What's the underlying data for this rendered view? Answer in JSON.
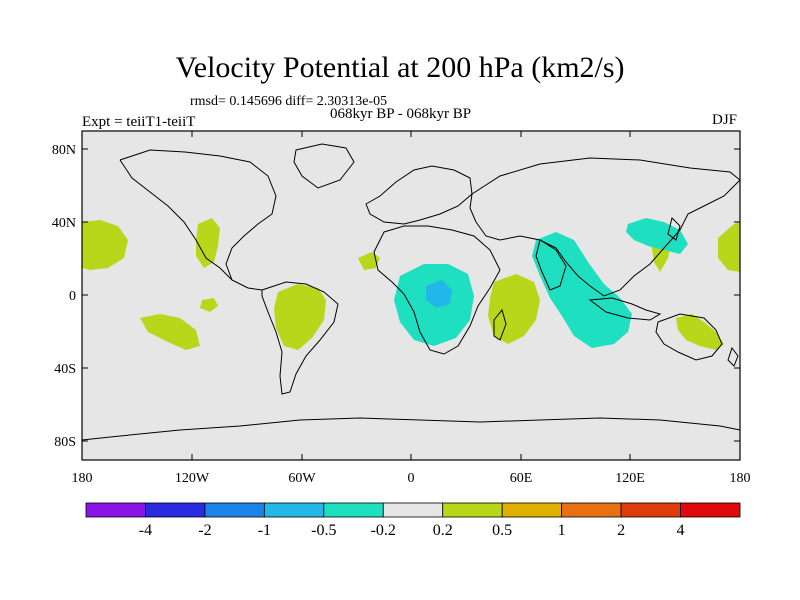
{
  "title": "Velocity Potential at 200 hPa (km2/s)",
  "stats_line": "rmsd= 0.145696 diff= 2.30313e-05",
  "period_line": "068kyr BP - 068kyr BP",
  "experiment_line": "Expt = teiiT1-teiiT",
  "season": "DJF",
  "map": {
    "x_ticks": [
      "180",
      "120W",
      "60W",
      "0",
      "60E",
      "120E",
      "180"
    ],
    "y_ticks": [
      "80N",
      "40N",
      "0",
      "40S",
      "80S"
    ],
    "background_color": "#e6e6e6",
    "positive_color": "#b8d61a",
    "negative_color": "#1ee0c0",
    "strong_negative_color": "#22b7e8"
  },
  "colorbar": {
    "labels": [
      "-4",
      "-2",
      "-1",
      "-0.5",
      "-0.2",
      "0.2",
      "0.5",
      "1",
      "2",
      "4"
    ],
    "colors": [
      "#8a16e6",
      "#2a2ae0",
      "#1b84e8",
      "#22b7e8",
      "#1ee0c0",
      "#e6e6e6",
      "#b8d61a",
      "#e0b000",
      "#e87012",
      "#e03c0a",
      "#e00a0a"
    ]
  }
}
